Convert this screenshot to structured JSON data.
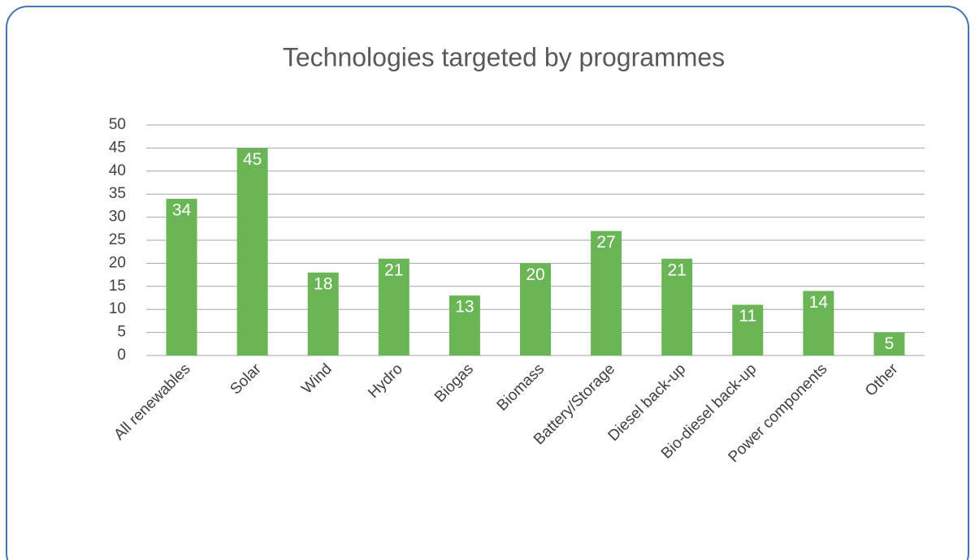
{
  "chart_data": {
    "type": "bar",
    "title": "Technologies targeted by programmes",
    "categories": [
      "All renewables",
      "Solar",
      "Wind",
      "Hydro",
      "Biogas",
      "Biomass",
      "Battery/Storage",
      "Diesel back-up",
      "Bio-diesel back-up",
      "Power components",
      "Other"
    ],
    "values": [
      34,
      45,
      18,
      21,
      13,
      20,
      27,
      21,
      11,
      14,
      5
    ],
    "color": "#6ab556",
    "ylim": [
      0,
      50
    ],
    "yticks": [
      0,
      5,
      10,
      15,
      20,
      25,
      30,
      35,
      40,
      45,
      50
    ],
    "grid": true
  }
}
